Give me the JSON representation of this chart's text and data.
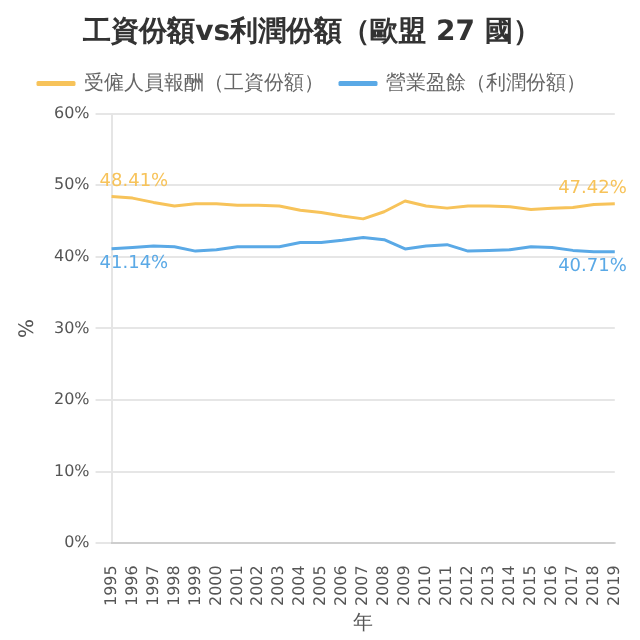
{
  "chart_data": {
    "type": "line",
    "title": "工資份額vs利潤份額（歐盟 27 國）",
    "xlabel": "年",
    "ylabel": "%",
    "categories": [
      "1995",
      "1996",
      "1997",
      "1998",
      "1999",
      "2000",
      "2001",
      "2002",
      "2003",
      "2004",
      "2005",
      "2006",
      "2007",
      "2008",
      "2009",
      "2010",
      "2011",
      "2012",
      "2013",
      "2014",
      "2015",
      "2016",
      "2017",
      "2018",
      "2019"
    ],
    "series": [
      {
        "name": "受僱人員報酬（工資份額）",
        "color": "#f7c35a",
        "values": [
          48.41,
          48.2,
          47.6,
          47.1,
          47.4,
          47.4,
          47.2,
          47.2,
          47.1,
          46.5,
          46.2,
          45.7,
          45.3,
          46.3,
          47.8,
          47.1,
          46.8,
          47.1,
          47.1,
          47.0,
          46.6,
          46.8,
          46.9,
          47.3,
          47.42
        ],
        "value_labels": [
          "48.41%",
          null,
          null,
          null,
          null,
          null,
          null,
          null,
          null,
          null,
          null,
          null,
          null,
          null,
          null,
          null,
          null,
          null,
          null,
          null,
          null,
          null,
          null,
          null,
          "47.42%"
        ]
      },
      {
        "name": "營業盈餘（利潤份額）",
        "color": "#5aa9e6",
        "values": [
          41.14,
          41.3,
          41.5,
          41.4,
          40.8,
          41.0,
          41.4,
          41.4,
          41.4,
          42.0,
          42.0,
          42.3,
          42.7,
          42.4,
          41.1,
          41.5,
          41.7,
          40.8,
          40.9,
          41.0,
          41.4,
          41.3,
          40.9,
          40.7,
          40.71
        ],
        "value_labels": [
          "41.14%",
          null,
          null,
          null,
          null,
          null,
          null,
          null,
          null,
          null,
          null,
          null,
          null,
          null,
          null,
          null,
          null,
          null,
          null,
          null,
          null,
          null,
          null,
          null,
          "40.71%"
        ]
      }
    ],
    "ylim": [
      0,
      60
    ],
    "yticks": [
      {
        "value": 0,
        "label": "0%"
      },
      {
        "value": 10,
        "label": "10%"
      },
      {
        "value": 20,
        "label": "20%"
      },
      {
        "value": 30,
        "label": "30%"
      },
      {
        "value": 40,
        "label": "40%"
      },
      {
        "value": 50,
        "label": "50%"
      },
      {
        "value": 60,
        "label": "60%"
      }
    ],
    "grid": "y",
    "legend": "top",
    "marker": "none",
    "line_style": "solid"
  }
}
